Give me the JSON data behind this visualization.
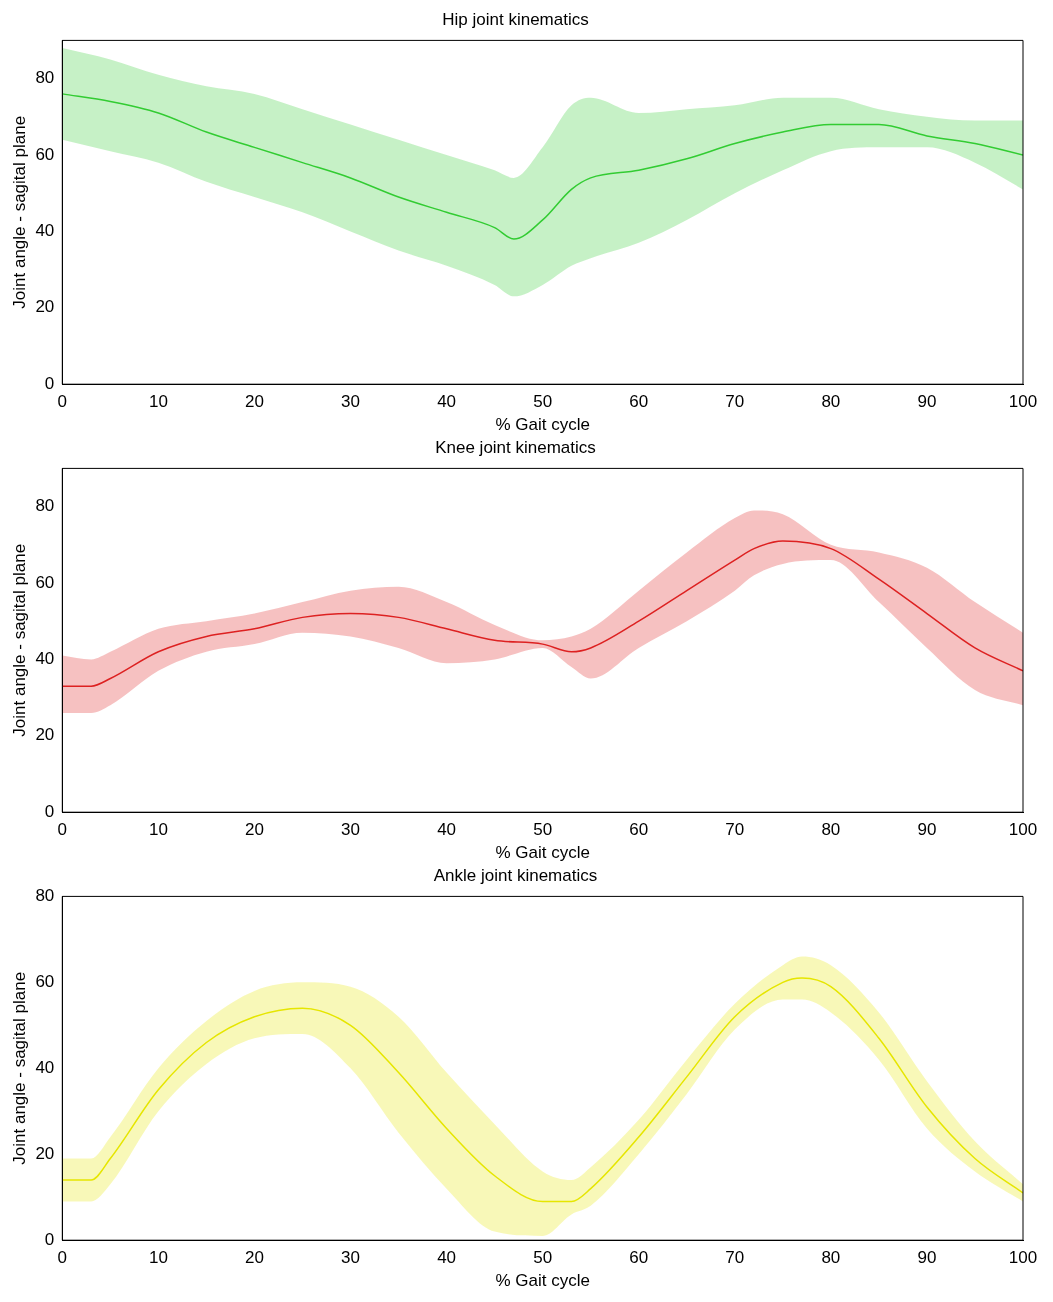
{
  "chart_data": [
    {
      "type": "line",
      "title": "Hip joint kinematics",
      "xlabel": "% Gait cycle",
      "ylabel": "Joint angle - sagital plane",
      "x": [
        0,
        5,
        10,
        15,
        20,
        25,
        30,
        35,
        40,
        45,
        47,
        50,
        53,
        55,
        60,
        65,
        70,
        75,
        80,
        85,
        90,
        95,
        100
      ],
      "xlim": [
        0,
        100
      ],
      "xticks": [
        0,
        10,
        20,
        30,
        40,
        50,
        60,
        70,
        80,
        90,
        100
      ],
      "ylim": [
        0,
        90
      ],
      "yticks": [
        0,
        20,
        40,
        60,
        80
      ],
      "marker": "none",
      "series": [
        {
          "color": "#33cc33",
          "values": [
            76,
            74,
            71,
            66,
            62,
            58,
            54,
            49,
            45,
            41,
            38,
            43,
            51,
            54,
            56,
            59,
            63,
            66,
            68,
            68,
            65,
            63,
            60
          ],
          "upper": [
            88,
            85,
            81,
            78,
            76,
            72,
            68,
            64,
            60,
            56,
            54,
            62,
            73,
            75,
            71,
            72,
            73,
            75,
            75,
            72,
            70,
            69,
            69
          ],
          "lower": [
            64,
            61,
            58,
            53,
            49,
            45,
            40,
            35,
            31,
            26,
            23,
            26,
            31,
            33,
            37,
            43,
            50,
            56,
            61,
            62,
            62,
            58,
            51
          ]
        }
      ]
    },
    {
      "type": "line",
      "title": "Knee joint kinematics",
      "xlabel": "% Gait cycle",
      "ylabel": "Joint angle - sagital plane",
      "x": [
        0,
        3,
        5,
        10,
        15,
        20,
        25,
        30,
        35,
        40,
        45,
        50,
        53,
        55,
        60,
        65,
        70,
        72,
        75,
        80,
        85,
        90,
        95,
        100
      ],
      "xlim": [
        0,
        100
      ],
      "xticks": [
        0,
        10,
        20,
        30,
        40,
        50,
        60,
        70,
        80,
        90,
        100
      ],
      "ylim": [
        0,
        90
      ],
      "yticks": [
        0,
        20,
        40,
        60,
        80
      ],
      "marker": "none",
      "series": [
        {
          "color": "#dd2222",
          "values": [
            33,
            33,
            35,
            42,
            46,
            48,
            51,
            52,
            51,
            48,
            45,
            44,
            42,
            43,
            50,
            58,
            66,
            69,
            71,
            69,
            61,
            52,
            43,
            37
          ],
          "upper": [
            41,
            40,
            42,
            48,
            50,
            52,
            55,
            58,
            59,
            55,
            49,
            45,
            46,
            48,
            58,
            68,
            77,
            79,
            78,
            70,
            68,
            64,
            55,
            47
          ],
          "lower": [
            26,
            26,
            28,
            37,
            42,
            44,
            47,
            46,
            43,
            39,
            40,
            43,
            38,
            35,
            43,
            50,
            58,
            62,
            65,
            66,
            55,
            43,
            32,
            28
          ]
        }
      ]
    },
    {
      "type": "line",
      "title": "Ankle joint kinematics",
      "xlabel": "% Gait cycle",
      "ylabel": "Joint angle - sagital plane",
      "x": [
        0,
        3,
        5,
        10,
        15,
        20,
        25,
        30,
        35,
        40,
        45,
        50,
        53,
        55,
        60,
        65,
        70,
        75,
        77,
        80,
        85,
        90,
        95,
        100
      ],
      "xlim": [
        0,
        100
      ],
      "xticks": [
        0,
        10,
        20,
        30,
        40,
        50,
        60,
        70,
        80,
        90,
        100
      ],
      "ylim": [
        0,
        80
      ],
      "yticks": [
        0,
        20,
        40,
        60,
        80
      ],
      "marker": "none",
      "series": [
        {
          "color": "#e6e600",
          "values": [
            14,
            14,
            19,
            35,
            46,
            52,
            54,
            50,
            39,
            26,
            15,
            9,
            9,
            12,
            24,
            38,
            52,
            60,
            61,
            59,
            47,
            31,
            19,
            11
          ],
          "upper": [
            19,
            19,
            24,
            40,
            51,
            58,
            60,
            59,
            52,
            39,
            27,
            16,
            14,
            17,
            28,
            42,
            55,
            64,
            66,
            64,
            53,
            37,
            23,
            13
          ],
          "lower": [
            9,
            9,
            13,
            30,
            41,
            47,
            48,
            40,
            25,
            12,
            2,
            1,
            6,
            8,
            20,
            34,
            49,
            56,
            56,
            53,
            42,
            26,
            16,
            9
          ]
        }
      ]
    }
  ]
}
